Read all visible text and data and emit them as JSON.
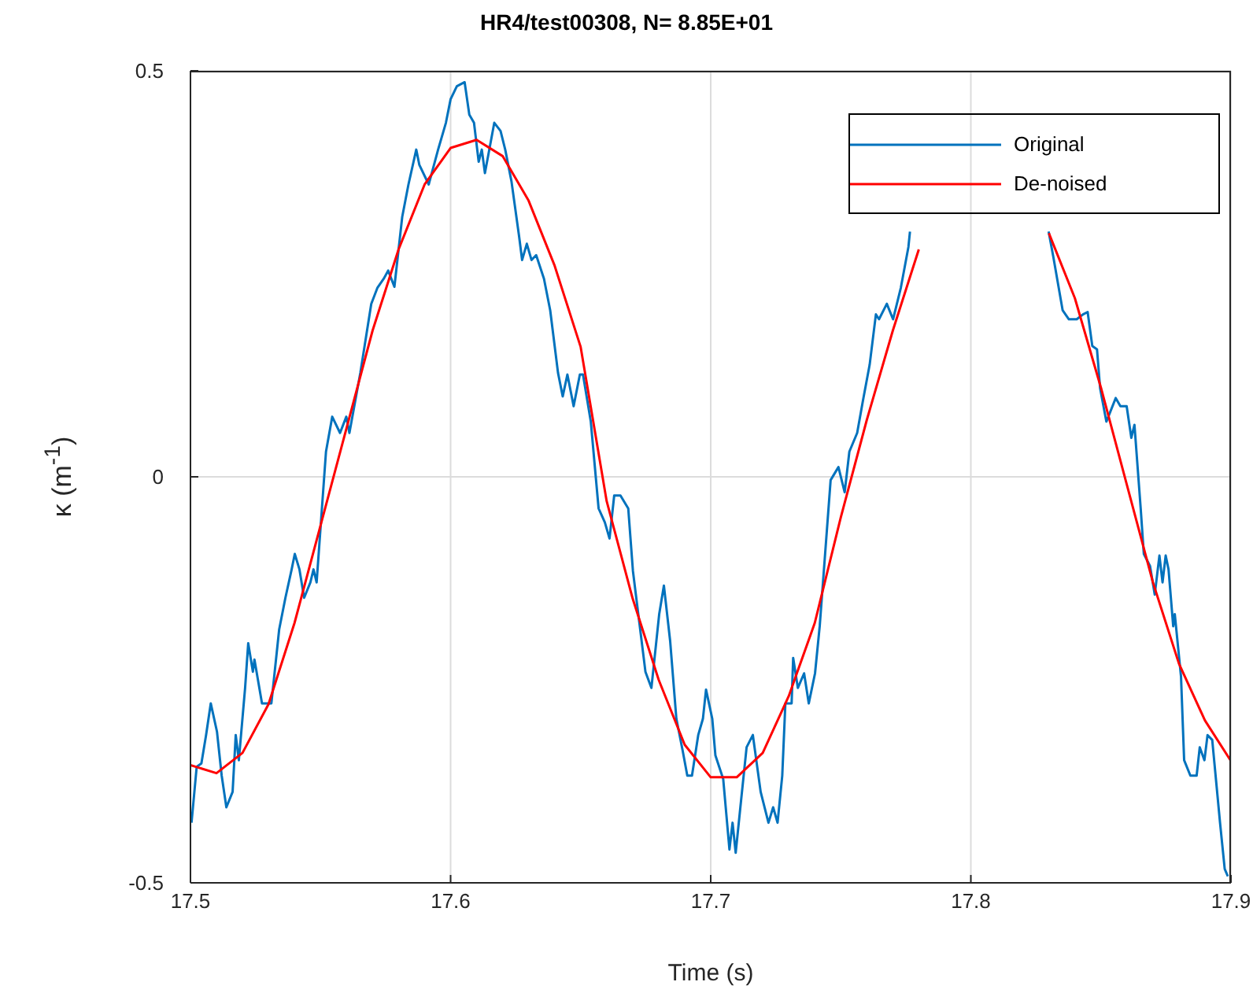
{
  "chart_data": {
    "type": "line",
    "title": "HR4/test00308, N= 8.85E+01",
    "xlabel": "Time (s)",
    "ylabel": "κ (m$^{-1}$)",
    "xlim": [
      17.5,
      17.9
    ],
    "xticks": [
      17.5,
      17.6,
      17.7,
      17.8,
      17.9
    ],
    "ylim": [
      -0.5,
      0.5
    ],
    "yticks": [
      -0.5,
      0,
      0.5
    ],
    "grid": true,
    "legend": "top right",
    "line_style": "solid",
    "marker": "none",
    "series": [
      {
        "name": "Original",
        "color": "#0072bd",
        "x": [
          17.5004,
          17.5024,
          17.5042,
          17.506,
          17.5078,
          17.5102,
          17.512,
          17.5138,
          17.5162,
          17.5174,
          17.5186,
          17.521,
          17.5222,
          17.524,
          17.5246,
          17.5275,
          17.5311,
          17.5341,
          17.5365,
          17.5389,
          17.5401,
          17.5419,
          17.5437,
          17.5461,
          17.5473,
          17.5485,
          17.5521,
          17.5545,
          17.5575,
          17.5599,
          17.5611,
          17.5653,
          17.5695,
          17.5719,
          17.5743,
          17.576,
          17.5784,
          17.5814,
          17.5838,
          17.5868,
          17.588,
          17.5916,
          17.5952,
          17.5982,
          17.6,
          17.6024,
          17.6054,
          17.6072,
          17.609,
          17.6108,
          17.612,
          17.6132,
          17.6168,
          17.6192,
          17.621,
          17.6234,
          17.6263,
          17.6275,
          17.6293,
          17.6311,
          17.6329,
          17.6359,
          17.6383,
          17.6413,
          17.6431,
          17.6449,
          17.6473,
          17.6497,
          17.6509,
          17.6539,
          17.6569,
          17.6593,
          17.6611,
          17.6629,
          17.6653,
          17.6683,
          17.6701,
          17.6749,
          17.6772,
          17.6802,
          17.682,
          17.6844,
          17.6868,
          17.6892,
          17.691,
          17.6928,
          17.6952,
          17.697,
          17.6982,
          17.7006,
          17.7018,
          17.7048,
          17.7072,
          17.7084,
          17.7096,
          17.7114,
          17.7138,
          17.7162,
          17.7192,
          17.7222,
          17.724,
          17.7257,
          17.7275,
          17.7287,
          17.7311,
          17.7317,
          17.7335,
          17.7359,
          17.7377,
          17.7401,
          17.7419,
          17.7461,
          17.7491,
          17.7515,
          17.7533,
          17.7563,
          17.7587,
          17.7611,
          17.7635,
          17.7647,
          17.7677,
          17.7701,
          17.7731,
          17.776,
          17.7766,
          17.8,
          17.8299,
          17.8317,
          17.8353,
          17.8377,
          17.8407,
          17.8431,
          17.8449,
          17.8467,
          17.8485,
          17.8497,
          17.8521,
          17.8557,
          17.8575,
          17.8599,
          17.8617,
          17.8629,
          17.8653,
          17.8665,
          17.8689,
          17.8707,
          17.8725,
          17.8737,
          17.8749,
          17.876,
          17.8778,
          17.8784,
          17.8808,
          17.882,
          17.8844,
          17.8868,
          17.888,
          17.8898,
          17.891,
          17.8928,
          17.8958,
          17.8976,
          17.8988
        ],
        "values": [
          -0.426,
          -0.357,
          -0.353,
          -0.318,
          -0.279,
          -0.314,
          -0.368,
          -0.407,
          -0.388,
          -0.318,
          -0.349,
          -0.26,
          -0.205,
          -0.24,
          -0.225,
          -0.279,
          -0.279,
          -0.188,
          -0.149,
          -0.114,
          -0.095,
          -0.114,
          -0.149,
          -0.13,
          -0.114,
          -0.13,
          0.031,
          0.074,
          0.054,
          0.074,
          0.054,
          0.128,
          0.213,
          0.233,
          0.244,
          0.254,
          0.234,
          0.32,
          0.36,
          0.403,
          0.384,
          0.36,
          0.403,
          0.436,
          0.465,
          0.481,
          0.486,
          0.446,
          0.436,
          0.388,
          0.403,
          0.374,
          0.436,
          0.426,
          0.403,
          0.364,
          0.297,
          0.267,
          0.287,
          0.267,
          0.273,
          0.244,
          0.205,
          0.128,
          0.099,
          0.126,
          0.087,
          0.126,
          0.126,
          0.068,
          -0.039,
          -0.056,
          -0.076,
          -0.023,
          -0.023,
          -0.039,
          -0.116,
          -0.24,
          -0.26,
          -0.169,
          -0.134,
          -0.202,
          -0.298,
          -0.337,
          -0.368,
          -0.368,
          -0.318,
          -0.298,
          -0.262,
          -0.298,
          -0.343,
          -0.372,
          -0.459,
          -0.426,
          -0.463,
          -0.407,
          -0.333,
          -0.318,
          -0.388,
          -0.426,
          -0.407,
          -0.426,
          -0.368,
          -0.279,
          -0.279,
          -0.223,
          -0.26,
          -0.242,
          -0.279,
          -0.242,
          -0.184,
          -0.004,
          0.012,
          -0.019,
          0.031,
          0.054,
          0.097,
          0.138,
          0.2,
          0.194,
          0.213,
          0.194,
          0.233,
          0.283,
          0.302,
          null,
          0.302,
          0.271,
          0.205,
          0.194,
          0.194,
          0.2,
          0.203,
          0.161,
          0.157,
          0.109,
          0.068,
          0.097,
          0.087,
          0.087,
          0.048,
          0.064,
          -0.039,
          -0.095,
          -0.11,
          -0.145,
          -0.097,
          -0.13,
          -0.097,
          -0.114,
          -0.184,
          -0.169,
          -0.246,
          -0.349,
          -0.368,
          -0.368,
          -0.333,
          -0.349,
          -0.318,
          -0.324,
          -0.426,
          -0.483,
          -0.492
        ]
      },
      {
        "name": "De-noised",
        "color": "#ff0000",
        "x": [
          17.5,
          17.51,
          17.52,
          17.53,
          17.54,
          17.55,
          17.56,
          17.57,
          17.58,
          17.59,
          17.6,
          17.61,
          17.62,
          17.63,
          17.64,
          17.65,
          17.66,
          17.67,
          17.68,
          17.69,
          17.7,
          17.71,
          17.72,
          17.73,
          17.74,
          17.75,
          17.76,
          17.77,
          17.78,
          17.79,
          17.83,
          17.84,
          17.85,
          17.86,
          17.87,
          17.88,
          17.89,
          17.9
        ],
        "values": [
          -0.355,
          -0.365,
          -0.34,
          -0.28,
          -0.18,
          -0.06,
          0.06,
          0.18,
          0.28,
          0.36,
          0.405,
          0.415,
          0.395,
          0.34,
          0.26,
          0.16,
          -0.03,
          -0.15,
          -0.25,
          -0.33,
          -0.37,
          -0.37,
          -0.34,
          -0.27,
          -0.18,
          -0.05,
          0.07,
          0.18,
          0.28,
          null,
          0.3,
          0.22,
          0.11,
          -0.01,
          -0.13,
          -0.23,
          -0.3,
          -0.35
        ]
      }
    ]
  }
}
